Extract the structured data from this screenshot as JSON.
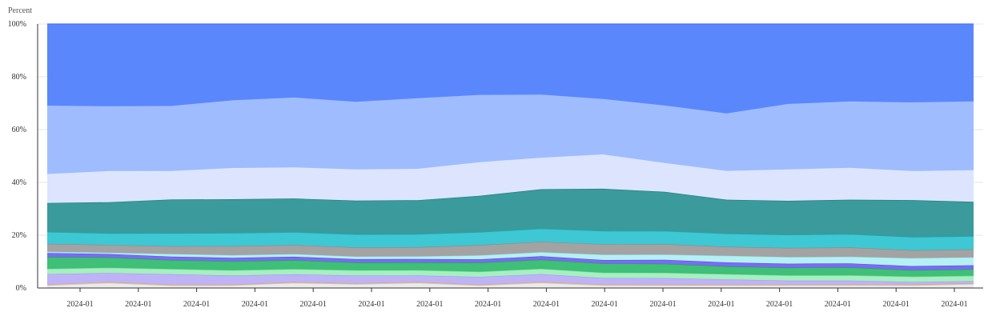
{
  "chart_data": {
    "type": "area",
    "stacked": true,
    "normalized": true,
    "y_axis_title": "Percent",
    "ylim": [
      0,
      100
    ],
    "y_ticks": [
      0,
      20,
      40,
      60,
      80,
      100
    ],
    "y_tick_labels": [
      "0%",
      "20%",
      "40%",
      "60%",
      "80%",
      "100%"
    ],
    "x_tick_labels": [
      "2024-01",
      "2024-01",
      "2024-01",
      "2024-01",
      "2024-01",
      "2024-01",
      "2024-01",
      "2024-01",
      "2024-01",
      "2024-01",
      "2024-01",
      "2024-01",
      "2024-01",
      "2024-01",
      "2024-01",
      "2024-01"
    ],
    "grid": {
      "horizontal": true,
      "vertical": false
    },
    "x_points": 16,
    "series": [
      {
        "color": "#ebebeb",
        "stroke": "#c8c8c8",
        "values": [
          1,
          2,
          1,
          1,
          2,
          1.5,
          2,
          1,
          2,
          1,
          1,
          1,
          1,
          1,
          1,
          1.5
        ]
      },
      {
        "color": "#f2c79c",
        "stroke": "#d9a06a",
        "values": [
          0.3,
          0.3,
          0.3,
          0.3,
          0.3,
          0.3,
          0.3,
          0.3,
          0.3,
          0.3,
          0.3,
          0.3,
          0.3,
          0.3,
          0.3,
          0.3
        ]
      },
      {
        "color": "#bfb3f7",
        "stroke": "#a999ee",
        "values": [
          4,
          3.5,
          4,
          3.5,
          3,
          3,
          2.5,
          3,
          3,
          2.5,
          2.5,
          2,
          1.5,
          1.5,
          1,
          0.8
        ]
      },
      {
        "color": "#a6efc0",
        "stroke": "#7edb9c",
        "values": [
          2,
          2,
          2,
          2,
          2,
          2,
          2,
          2,
          2,
          2,
          2,
          2,
          2,
          2,
          2,
          2
        ]
      },
      {
        "color": "#3fbf77",
        "stroke": "#2a9a5a",
        "values": [
          4.5,
          4,
          3.5,
          3.5,
          3.5,
          3,
          3,
          3.5,
          3.5,
          3.5,
          3.5,
          3,
          3,
          3,
          2.5,
          2.5
        ]
      },
      {
        "color": "#7a6cf5",
        "stroke": "#5a49e6",
        "values": [
          1.5,
          1.3,
          1.3,
          1.3,
          1.3,
          1.3,
          1.3,
          1.3,
          1.3,
          1.3,
          1.5,
          1.5,
          1.5,
          1.5,
          1.5,
          1.5
        ]
      },
      {
        "color": "#b5f0f4",
        "stroke": "#8fe3ea",
        "values": [
          0.5,
          0.5,
          1,
          1,
          1,
          1,
          1,
          1.5,
          1.5,
          2,
          2,
          2.5,
          2.5,
          2.5,
          3,
          3
        ]
      },
      {
        "color": "#a3a3a3",
        "stroke": "#8a8a8a",
        "values": [
          3,
          3,
          3,
          3.5,
          3.5,
          3.5,
          3.5,
          4,
          4,
          4,
          4,
          3.5,
          3.5,
          3.5,
          3,
          3
        ]
      },
      {
        "color": "#3dc8d3",
        "stroke": "#21a9b6",
        "values": [
          4.5,
          4.5,
          5,
          5,
          5,
          5,
          5,
          5,
          5,
          5,
          5,
          5,
          5,
          5,
          5,
          5
        ]
      },
      {
        "color": "#3a9a9c",
        "stroke": "#1f7a7c",
        "values": [
          11,
          12,
          13,
          13,
          13,
          13,
          13,
          14,
          15,
          16,
          15,
          13,
          13,
          13,
          14,
          13
        ]
      },
      {
        "color": "#dce5fd",
        "stroke": "#dce5fd",
        "values": [
          11,
          12,
          11,
          12,
          12,
          12,
          12,
          13,
          12,
          13,
          11,
          11,
          12,
          12,
          11,
          12
        ]
      },
      {
        "color": "#9fbcff",
        "stroke": "#9fbcff",
        "values": [
          26,
          25,
          25,
          26,
          27,
          26,
          27,
          26,
          24,
          21,
          22,
          22,
          25,
          25,
          26,
          26
        ]
      },
      {
        "color": "#5b87fd",
        "stroke": "#4a74f0",
        "values": [
          31,
          31.7,
          31.6,
          29.3,
          28.4,
          29.9,
          28.4,
          27.4,
          26.9,
          28.4,
          31.2,
          34.2,
          30.5,
          29.2,
          29.7,
          29.3
        ]
      }
    ]
  }
}
